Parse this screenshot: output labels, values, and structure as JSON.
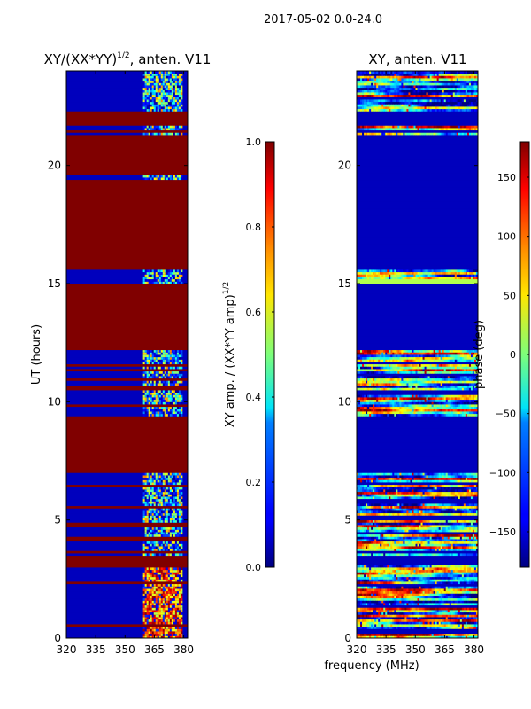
{
  "suptitle": "2017-05-02 0.0-24.0",
  "colors": {
    "background": "#ffffff",
    "axis": "#000000"
  },
  "chart_data": [
    {
      "type": "heatmap",
      "title_main": "XY/(XX*YY)",
      "title_sup": "1/2",
      "title_rest": ", anten. V11",
      "xlabel": "",
      "ylabel": "UT (hours)",
      "xlim": [
        320,
        382
      ],
      "ylim": [
        0,
        24
      ],
      "x_ticks": [
        320,
        335,
        350,
        365,
        380
      ],
      "x_tick_labels": [
        "320",
        "335",
        "350",
        "365",
        "380"
      ],
      "y_ticks": [
        0,
        5,
        10,
        15,
        20
      ],
      "y_tick_labels": [
        "0",
        "5",
        "10",
        "15",
        "20"
      ],
      "colormap": "jet",
      "clim": [
        0,
        1
      ],
      "colorbar_label_main": "XY amp. / (XX*YY amp)",
      "colorbar_label_sup": "1/2",
      "colorbar_ticks": [
        0.0,
        0.2,
        0.4,
        0.6,
        0.8,
        1.0
      ],
      "colorbar_tick_labels": [
        "0.0",
        "0.2",
        "0.4",
        "0.6",
        "0.8",
        "1.0"
      ],
      "active_band_mhz": [
        359,
        379
      ],
      "high_blocks_hours": [
        [
          7.0,
          9.4
        ],
        [
          12.2,
          15.0
        ],
        [
          15.6,
          19.3
        ],
        [
          19.6,
          21.3
        ],
        [
          21.7,
          22.3
        ]
      ],
      "flagged_lines_hours": [
        0.5,
        1.5,
        2.4,
        3.0,
        3.2,
        3.4,
        3.6,
        4.2,
        4.8,
        5.6,
        6.4,
        6.9,
        9.6,
        9.8,
        10.6,
        10.9,
        11.3,
        11.6,
        12.0,
        15.2,
        15.4,
        19.4,
        19.5,
        20.8,
        21.5,
        22.5,
        22.7,
        23.2
      ]
    },
    {
      "type": "heatmap",
      "title": "XY, anten. V11",
      "xlabel": "frequency (MHz)",
      "ylabel": "",
      "xlim": [
        320,
        382
      ],
      "ylim": [
        0,
        24
      ],
      "x_ticks": [
        320,
        335,
        350,
        365,
        380
      ],
      "x_tick_labels": [
        "320",
        "335",
        "350",
        "365",
        "380"
      ],
      "y_ticks": [
        0,
        5,
        10,
        15,
        20
      ],
      "y_tick_labels": [
        "0",
        "5",
        "10",
        "15",
        "20"
      ],
      "colormap": "jet",
      "clim": [
        -180,
        180
      ],
      "colorbar_label": "phase (deg)",
      "colorbar_ticks": [
        -150,
        -100,
        -50,
        0,
        50,
        100,
        150
      ],
      "colorbar_tick_labels": [
        "−150",
        "−100",
        "−50",
        "0",
        "50",
        "100",
        "150"
      ],
      "flagged_blocks_hours": [
        [
          7.0,
          9.4
        ],
        [
          12.2,
          15.0
        ],
        [
          15.6,
          21.3
        ],
        [
          21.7,
          22.3
        ]
      ],
      "green_band_hours": [
        14.95,
        15.2
      ],
      "dark_lines_hours": [
        0.3,
        1.4,
        2.2,
        3.2,
        3.4,
        3.6,
        4.4,
        5.1,
        5.8,
        6.5,
        9.6,
        10.4,
        11.2,
        11.7,
        21.5,
        22.8
      ]
    }
  ]
}
